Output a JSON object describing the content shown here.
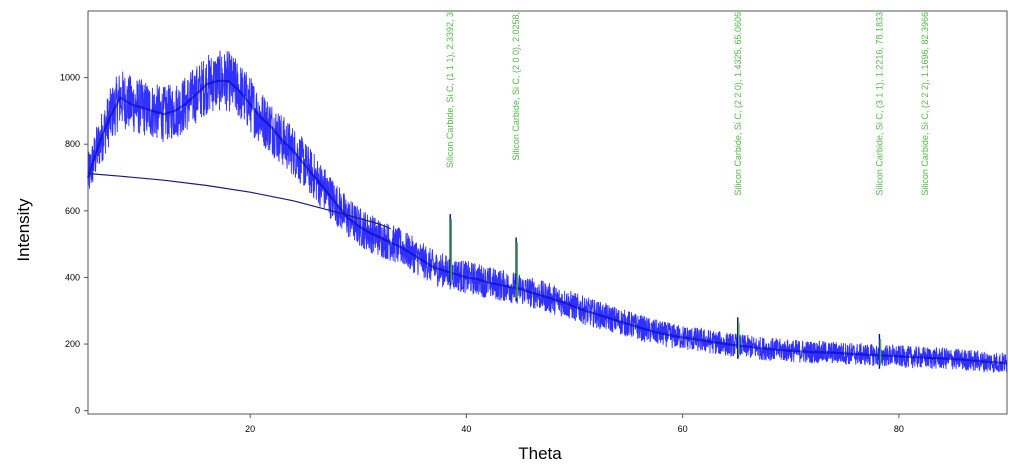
{
  "chart_data": {
    "type": "line",
    "title": "",
    "xlabel": "Theta",
    "ylabel": "Intensity",
    "xlim": [
      5,
      90
    ],
    "ylim": [
      -10,
      1200
    ],
    "x_ticks": [
      20,
      40,
      60,
      80
    ],
    "y_ticks": [
      0,
      200,
      400,
      600,
      800,
      1000
    ],
    "grid": false,
    "legend": "none",
    "colors": {
      "pattern": "#1a1aff",
      "pattern_dark": "#0000b3",
      "background_curve": "#1a1a80",
      "peak_markers": "#4caf50",
      "peak_labels": "#55b84a",
      "frame": "#555555"
    },
    "series": [
      {
        "points": [
          [
            5,
            700
          ],
          [
            6,
            800
          ],
          [
            7,
            880
          ],
          [
            8,
            940
          ],
          [
            9,
            920
          ],
          [
            10,
            910
          ],
          [
            11,
            900
          ],
          [
            12,
            890
          ],
          [
            13,
            900
          ],
          [
            14,
            920
          ],
          [
            15,
            950
          ],
          [
            16,
            980
          ],
          [
            17,
            990
          ],
          [
            18,
            990
          ],
          [
            19,
            960
          ],
          [
            20,
            920
          ],
          [
            21,
            880
          ],
          [
            22,
            850
          ],
          [
            23,
            810
          ],
          [
            24,
            780
          ],
          [
            25,
            740
          ],
          [
            26,
            700
          ],
          [
            27,
            660
          ],
          [
            28,
            620
          ],
          [
            29,
            580
          ],
          [
            30,
            555
          ],
          [
            31,
            535
          ],
          [
            32,
            520
          ],
          [
            33,
            505
          ],
          [
            34,
            490
          ],
          [
            35,
            470
          ],
          [
            36,
            450
          ],
          [
            37,
            430
          ],
          [
            38,
            420
          ],
          [
            39,
            410
          ],
          [
            40,
            400
          ],
          [
            41,
            395
          ],
          [
            42,
            385
          ],
          [
            43,
            378
          ],
          [
            44,
            372
          ],
          [
            45,
            365
          ],
          [
            46,
            355
          ],
          [
            47,
            345
          ],
          [
            48,
            335
          ],
          [
            49,
            325
          ],
          [
            50,
            312
          ],
          [
            51,
            300
          ],
          [
            52,
            290
          ],
          [
            53,
            280
          ],
          [
            54,
            270
          ],
          [
            55,
            260
          ],
          [
            56,
            250
          ],
          [
            57,
            240
          ],
          [
            58,
            232
          ],
          [
            59,
            225
          ],
          [
            60,
            220
          ],
          [
            61,
            215
          ],
          [
            62,
            210
          ],
          [
            63,
            205
          ],
          [
            64,
            200
          ],
          [
            65,
            196
          ],
          [
            66,
            192
          ],
          [
            67,
            188
          ],
          [
            68,
            185
          ],
          [
            69,
            182
          ],
          [
            70,
            180
          ],
          [
            71,
            178
          ],
          [
            72,
            176
          ],
          [
            73,
            175
          ],
          [
            74,
            174
          ],
          [
            75,
            172
          ],
          [
            76,
            170
          ],
          [
            77,
            168
          ],
          [
            78,
            166
          ],
          [
            79,
            165
          ],
          [
            80,
            163
          ],
          [
            81,
            161
          ],
          [
            82,
            160
          ],
          [
            83,
            158
          ],
          [
            84,
            157
          ],
          [
            85,
            155
          ],
          [
            86,
            153
          ],
          [
            87,
            150
          ],
          [
            88,
            147
          ],
          [
            89,
            145
          ],
          [
            90,
            142
          ]
        ]
      },
      {
        "points": [
          [
            5,
            712
          ],
          [
            8,
            704
          ],
          [
            12,
            692
          ],
          [
            16,
            676
          ],
          [
            20,
            656
          ],
          [
            24,
            630
          ],
          [
            28,
            596
          ],
          [
            32,
            560
          ],
          [
            33,
            546
          ]
        ]
      }
    ],
    "peaks": [
      {
        "x": 38.5,
        "height": 590,
        "label": "Silicon Carbide, Si C, (1 1 1), 2.3392, 3"
      },
      {
        "x": 44.6,
        "height": 520,
        "label": "Silicon Carbide, Si C, (2 0 0), 2.0258,"
      },
      {
        "x": 65.1,
        "height": 280,
        "label": "Silicon Carbide, Si C, (2 2 0), 1.4325, 65.0606"
      },
      {
        "x": 78.2,
        "height": 230,
        "label": "Silicon Carbide, Si C, (3 1 1), 1.2216, 78.1833"
      },
      {
        "x": 82.4,
        "height": 0,
        "label": "Silicon Carbide, Si C, (2 2 2), 1.1696, 82.3966"
      }
    ]
  }
}
